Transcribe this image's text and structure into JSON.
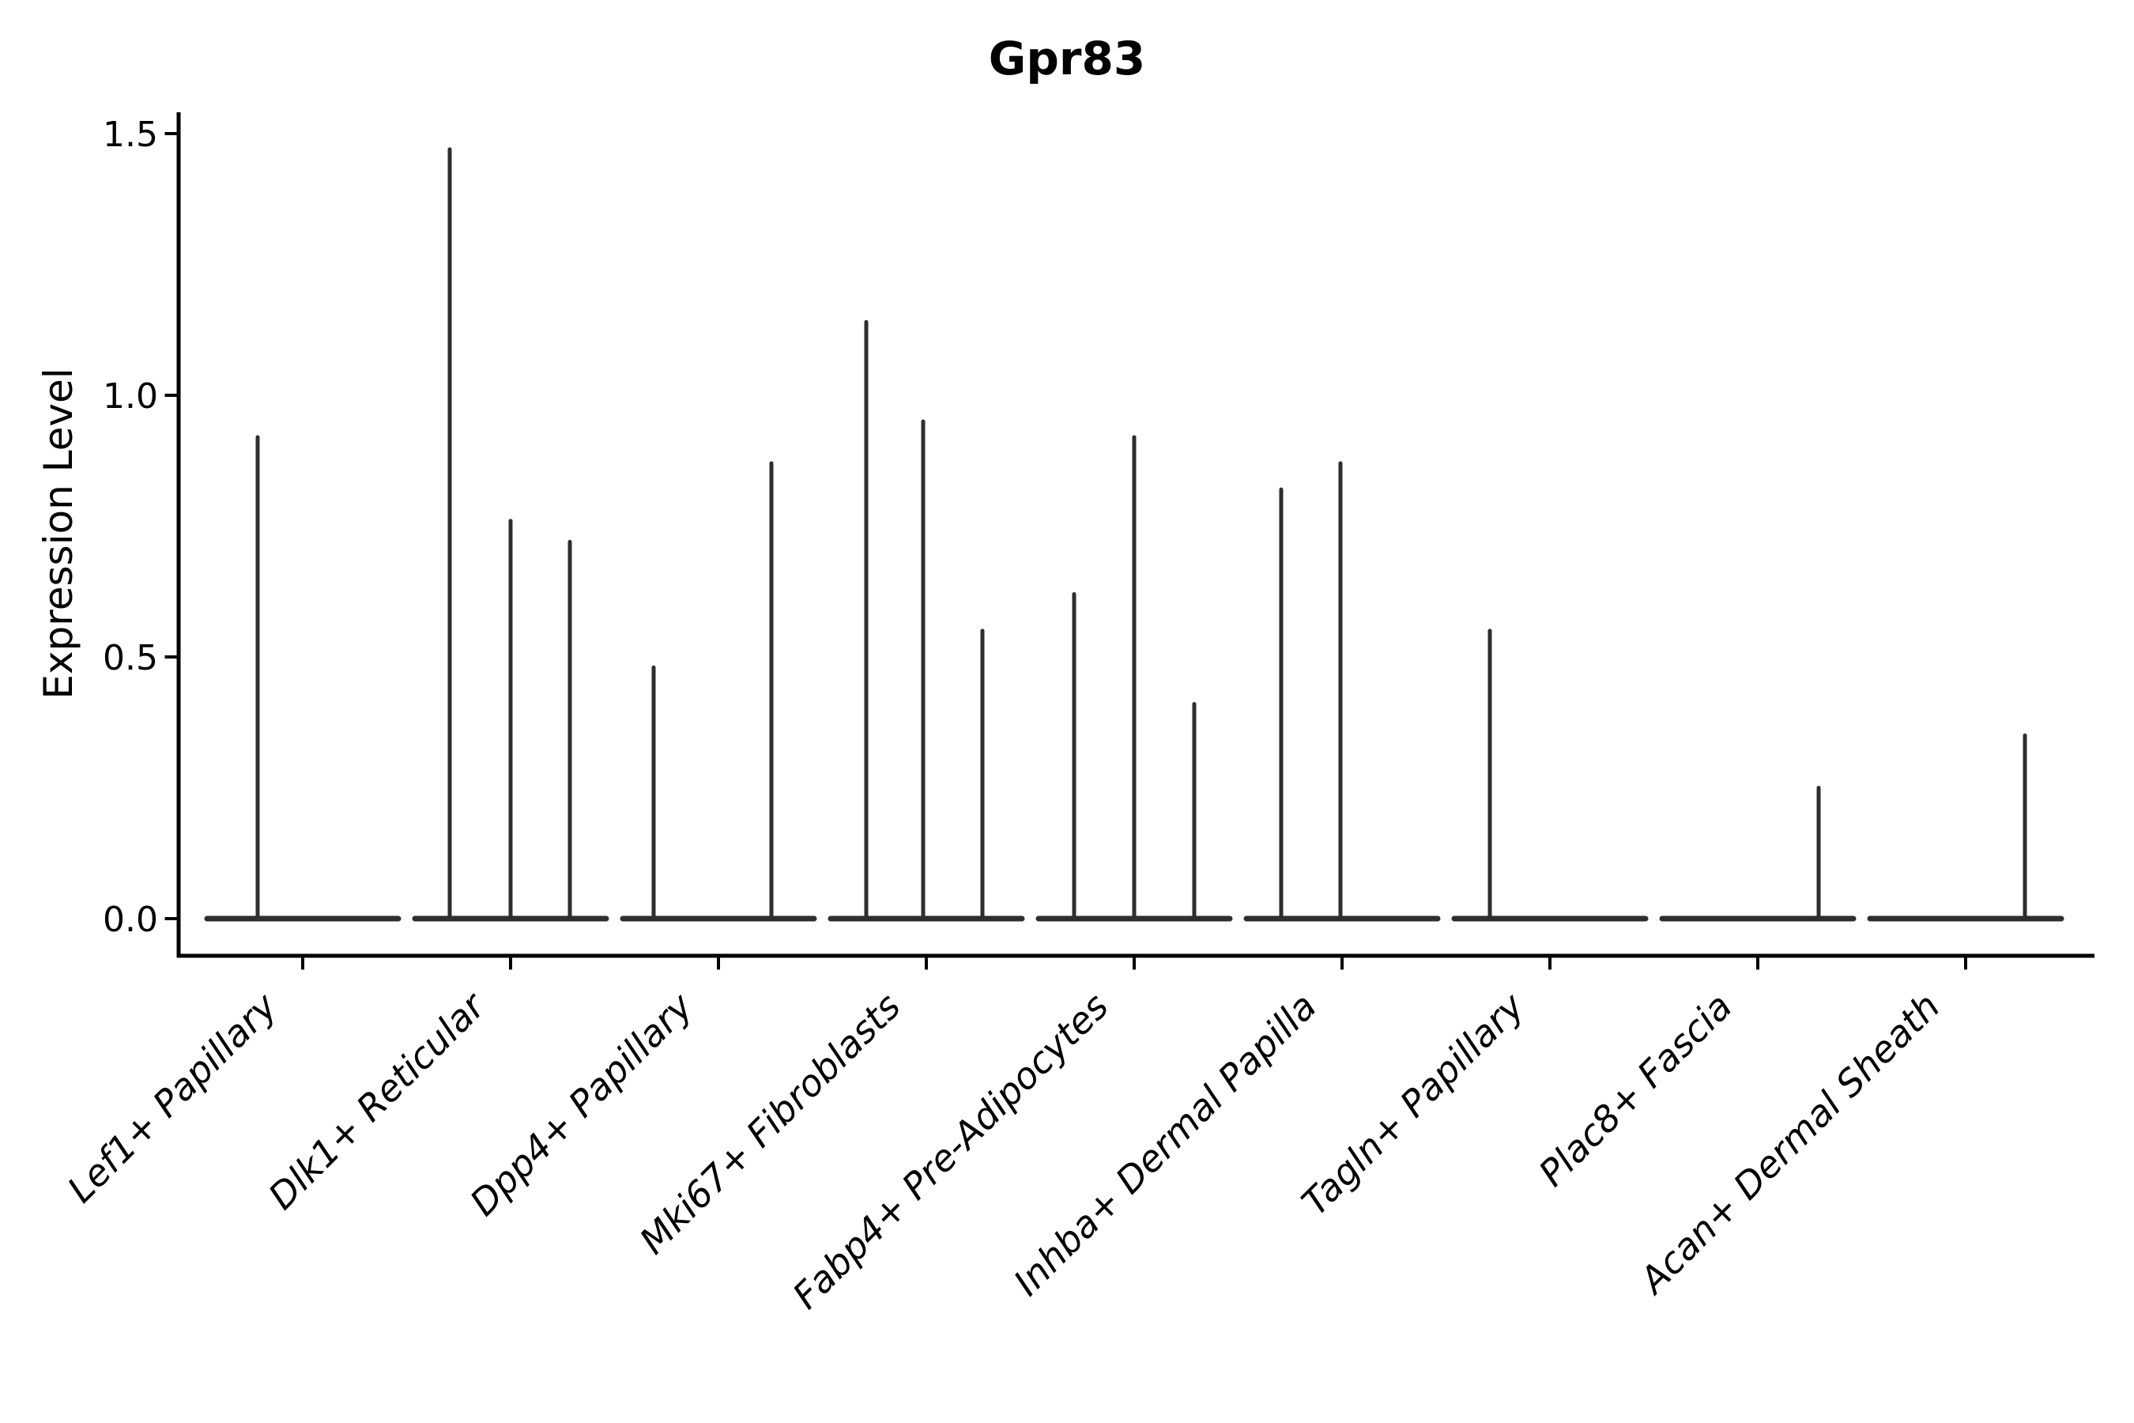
{
  "colors": {
    "background": "#ffffff",
    "axis": "#000000",
    "text": "#000000",
    "violin": "#2e2e2e"
  },
  "chart_data": {
    "type": "violin",
    "title": "Gpr83",
    "xlabel": "",
    "ylabel": "Expression Level",
    "ylim": [
      0,
      1.5
    ],
    "yticks": [
      0.0,
      0.5,
      1.0,
      1.5
    ],
    "grid": false,
    "legend_position": "none",
    "x_tick_rotation": 45,
    "description": "Violin plot of Gpr83 expression per fibroblast cluster; each cluster shows up to three dodged violins collapsed to a flat line at 0 with thin spikes reaching the maximum expression level of rare expressing cells.",
    "categories": [
      "Lef1+ Papillary",
      "Dlk1+ Reticular",
      "Dpp4+ Papillary",
      "Mki67+ Fibroblasts",
      "Fabp4+ Pre-Adipocytes",
      "Inhba+ Dermal Papilla",
      "Tagln+ Papillary",
      "Plac8+ Fascia",
      "Acan+ Dermal Sheath"
    ],
    "groups": [
      {
        "label": "Lef1+ Papillary",
        "spikes": [
          {
            "dx": -57,
            "max": 0.92
          }
        ]
      },
      {
        "label": "Dlk1+ Reticular",
        "spikes": [
          {
            "dx": -77,
            "max": 1.47
          },
          {
            "dx": 0,
            "max": 0.76
          },
          {
            "dx": 75,
            "max": 0.72
          }
        ]
      },
      {
        "label": "Dpp4+ Papillary",
        "spikes": [
          {
            "dx": -82,
            "max": 0.48
          },
          {
            "dx": 67,
            "max": 0.87
          }
        ]
      },
      {
        "label": "Mki67+ Fibroblasts",
        "spikes": [
          {
            "dx": -76,
            "max": 1.14
          },
          {
            "dx": -4,
            "max": 0.95
          },
          {
            "dx": 71,
            "max": 0.55
          }
        ]
      },
      {
        "label": "Fabp4+ Pre-Adipocytes",
        "spikes": [
          {
            "dx": -76,
            "max": 0.62
          },
          {
            "dx": 0,
            "max": 0.92
          },
          {
            "dx": 76,
            "max": 0.41
          }
        ]
      },
      {
        "label": "Inhba+ Dermal Papilla",
        "spikes": [
          {
            "dx": -77,
            "max": 0.82
          },
          {
            "dx": -2,
            "max": 0.87
          }
        ]
      },
      {
        "label": "Tagln+ Papillary",
        "spikes": [
          {
            "dx": -76,
            "max": 0.55
          }
        ]
      },
      {
        "label": "Plac8+ Fascia",
        "spikes": [
          {
            "dx": 77,
            "max": 0.25
          }
        ]
      },
      {
        "label": "Acan+ Dermal Sheath",
        "spikes": [
          {
            "dx": 75,
            "max": 0.35
          }
        ]
      }
    ]
  }
}
